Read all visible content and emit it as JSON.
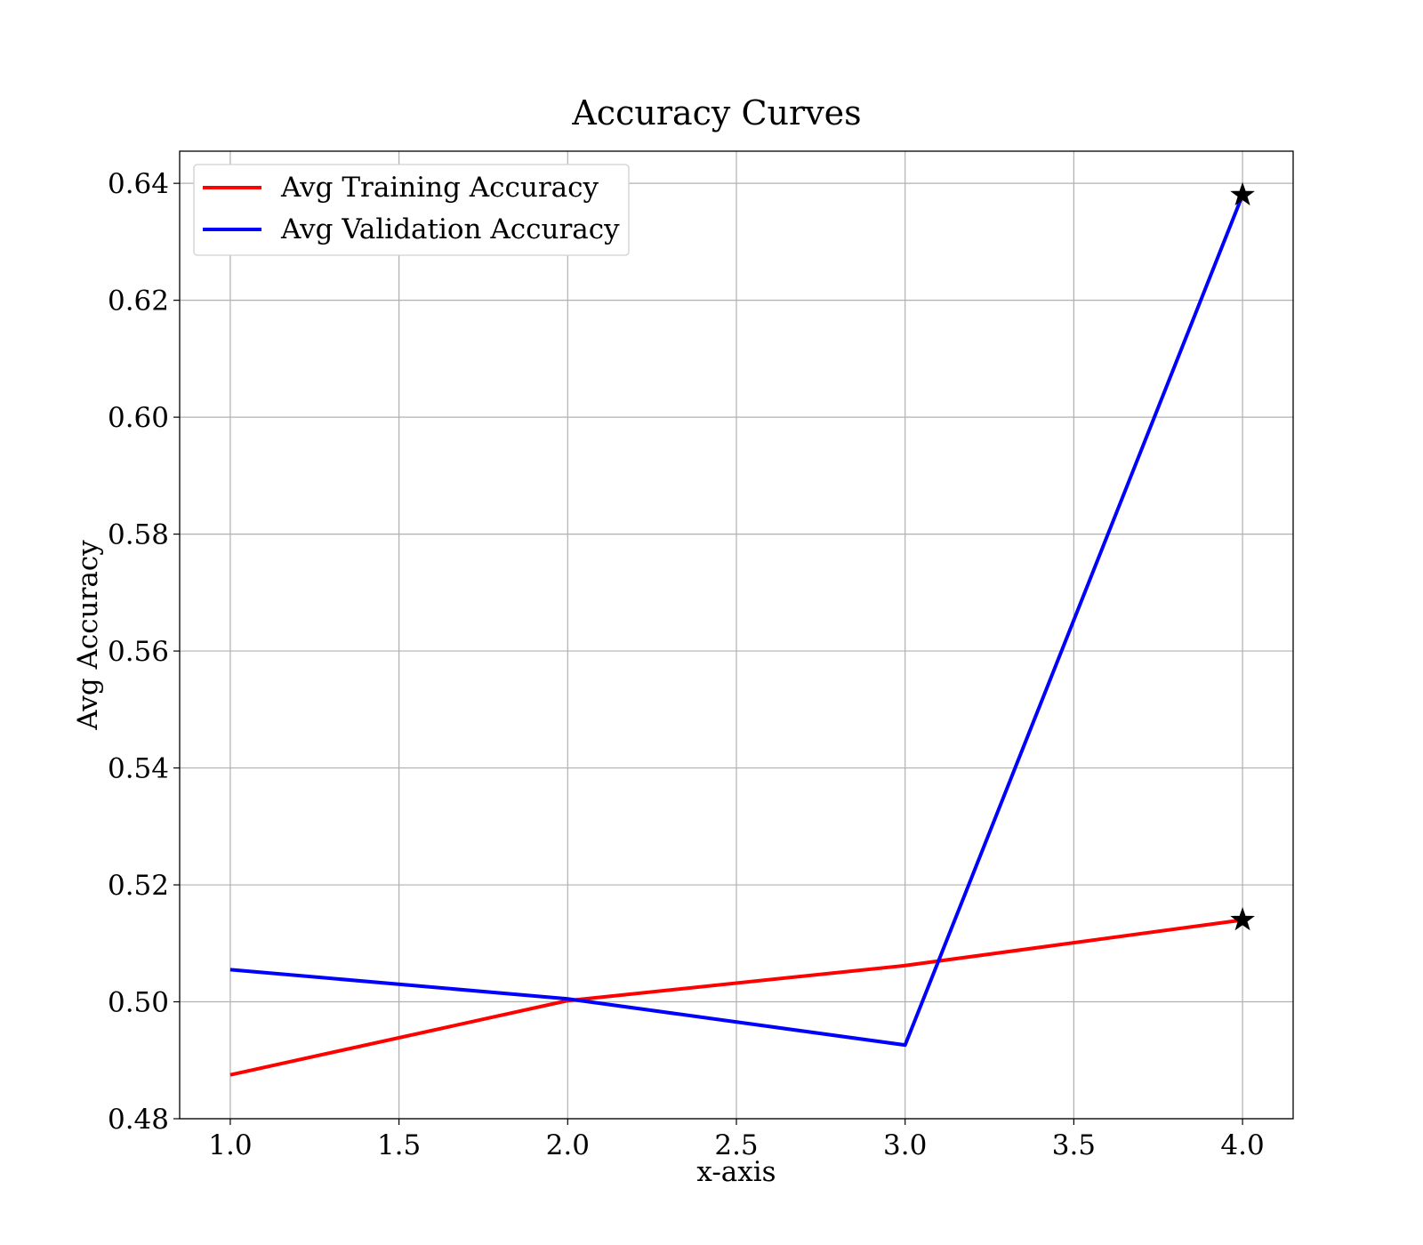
{
  "chart_data": {
    "type": "line",
    "title": "Accuracy Curves",
    "xlabel": "x-axis",
    "ylabel": "Avg Accuracy",
    "x": [
      1.0,
      2.0,
      3.0,
      4.0
    ],
    "xlim": [
      0.85,
      4.15
    ],
    "ylim": [
      0.48,
      0.6455
    ],
    "xticks": [
      "1.0",
      "1.5",
      "2.0",
      "2.5",
      "3.0",
      "3.5",
      "4.0"
    ],
    "yticks": [
      "0.48",
      "0.50",
      "0.52",
      "0.54",
      "0.56",
      "0.58",
      "0.60",
      "0.62",
      "0.64"
    ],
    "grid": true,
    "legend_position": "top-left",
    "series": [
      {
        "name": "Avg Training Accuracy",
        "color": "#ff0000",
        "values": [
          0.4875,
          0.5002,
          0.5062,
          0.514
        ],
        "marker_at_last": "star"
      },
      {
        "name": "Avg Validation Accuracy",
        "color": "#0000ff",
        "values": [
          0.5055,
          0.5005,
          0.4926,
          0.638
        ],
        "marker_at_last": "star"
      }
    ]
  }
}
